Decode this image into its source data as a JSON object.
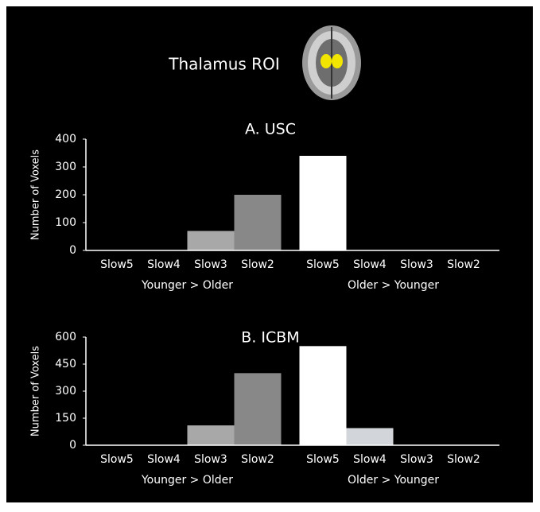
{
  "title": "Thalamus ROI",
  "chart_data": [
    {
      "type": "bar",
      "title": "A. USC",
      "y_label": "Number of Voxels",
      "categories": [
        "Slow5",
        "Slow4",
        "Slow3",
        "Slow2",
        "Slow5",
        "Slow4",
        "Slow3",
        "Slow2"
      ],
      "values": [
        0,
        0,
        70,
        200,
        340,
        0,
        0,
        0
      ],
      "colors": [
        "#c8c8c8",
        "#d2d6da",
        "#a8a8a8",
        "#888888",
        "#ffffff",
        "#d2d6da",
        "#c8c8c8",
        "#c8c8c8"
      ],
      "group_labels": [
        "Younger > Older",
        "Older > Younger"
      ],
      "ylim": [
        0,
        400
      ],
      "yticks": [
        0,
        100,
        200,
        300,
        400
      ]
    },
    {
      "type": "bar",
      "title": "B. ICBM",
      "y_label": "Number of Voxels",
      "categories": [
        "Slow5",
        "Slow4",
        "Slow3",
        "Slow2",
        "Slow5",
        "Slow4",
        "Slow3",
        "Slow2"
      ],
      "values": [
        0,
        0,
        110,
        400,
        550,
        95,
        0,
        0
      ],
      "colors": [
        "#c8c8c8",
        "#d2d6da",
        "#a8a8a8",
        "#888888",
        "#ffffff",
        "#d2d6da",
        "#c8c8c8",
        "#c8c8c8"
      ],
      "group_labels": [
        "Younger > Older",
        "Older > Younger"
      ],
      "ylim": [
        0,
        600
      ],
      "yticks": [
        0,
        150,
        300,
        450,
        600
      ]
    }
  ]
}
